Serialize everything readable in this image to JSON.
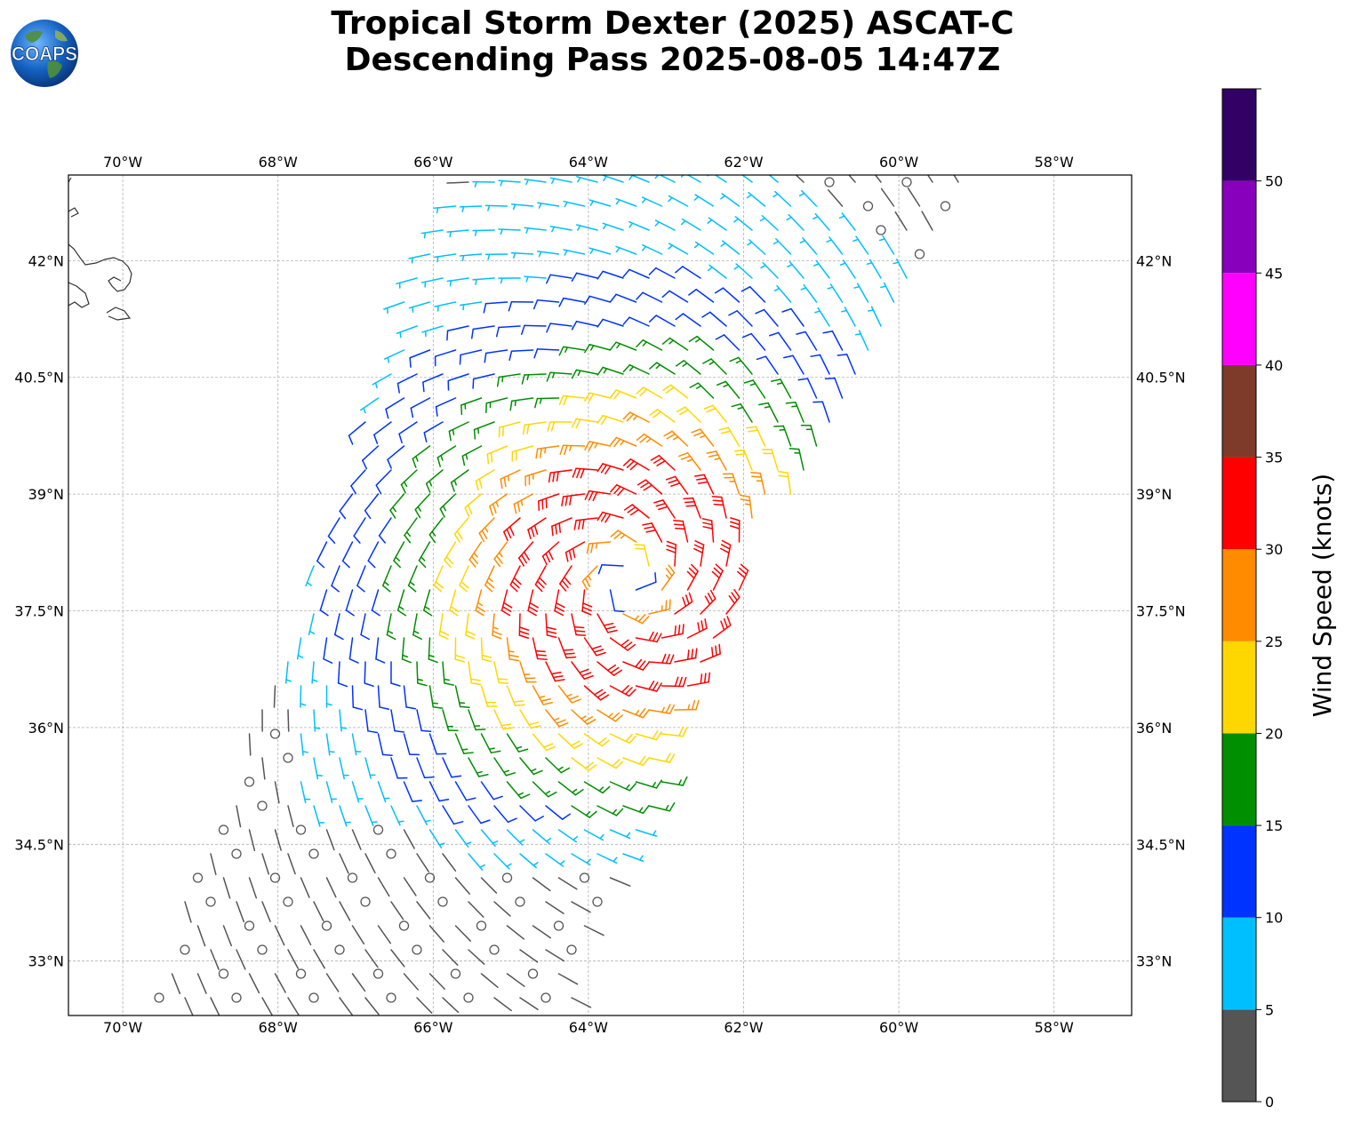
{
  "title": {
    "line1": "Tropical Storm Dexter (2025) ASCAT-C",
    "line2": "Descending Pass 2025-08-05 14:47Z"
  },
  "logo": {
    "text": "COAPS",
    "icon": "globe-icon"
  },
  "map": {
    "lon_range": [
      -70.7,
      -57.0
    ],
    "lat_range": [
      32.3,
      43.1
    ],
    "lon_ticks": [
      {
        "value": -70,
        "label": "70°W"
      },
      {
        "value": -68,
        "label": "68°W"
      },
      {
        "value": -66,
        "label": "66°W"
      },
      {
        "value": -64,
        "label": "64°W"
      },
      {
        "value": -62,
        "label": "62°W"
      },
      {
        "value": -60,
        "label": "60°W"
      },
      {
        "value": -58,
        "label": "58°W"
      }
    ],
    "lat_ticks": [
      {
        "value": 42,
        "label": "42°N"
      },
      {
        "value": 40.5,
        "label": "40.5°N"
      },
      {
        "value": 39,
        "label": "39°N"
      },
      {
        "value": 37.5,
        "label": "37.5°N"
      },
      {
        "value": 36,
        "label": "36°N"
      },
      {
        "value": 34.5,
        "label": "34.5°N"
      },
      {
        "value": 33,
        "label": "33°N"
      }
    ],
    "gridlines": true,
    "storm_center": {
      "lon": -63.5,
      "lat": 37.9
    },
    "swath": {
      "corners": [
        {
          "lon": -68.0,
          "lat": 36.9
        },
        {
          "lon": -65.8,
          "lat": 43.1
        },
        {
          "lon": -59.0,
          "lat": 43.1
        },
        {
          "lon": -61.8,
          "lat": 38.3
        },
        {
          "lon": -64.3,
          "lat": 32.3
        },
        {
          "lon": -69.8,
          "lat": 32.3
        }
      ]
    },
    "colors": {
      "calm": "#555555",
      "c5": "#00bfff",
      "c10": "#0033ff",
      "c15": "#008f00",
      "c20": "#ffd700",
      "c25": "#ff8c00",
      "c30": "#ff0000",
      "c35": "#7f3b2a",
      "c40": "#ff00ff",
      "c45": "#8800bb",
      "c50": "#330066",
      "coast": "#333333",
      "grid": "#b0b0b0"
    }
  },
  "colorbar": {
    "label": "Wind Speed (knots)",
    "bins": [
      {
        "min": 0,
        "max": 5,
        "color": "#555555"
      },
      {
        "min": 5,
        "max": 10,
        "color": "#00bfff"
      },
      {
        "min": 10,
        "max": 15,
        "color": "#0033ff"
      },
      {
        "min": 15,
        "max": 20,
        "color": "#008f00"
      },
      {
        "min": 20,
        "max": 25,
        "color": "#ffd700"
      },
      {
        "min": 25,
        "max": 30,
        "color": "#ff8c00"
      },
      {
        "min": 30,
        "max": 35,
        "color": "#ff0000"
      },
      {
        "min": 35,
        "max": 40,
        "color": "#7f3b2a"
      },
      {
        "min": 40,
        "max": 45,
        "color": "#ff00ff"
      },
      {
        "min": 45,
        "max": 50,
        "color": "#8800bb"
      },
      {
        "min": 50,
        "max": 55,
        "color": "#330066"
      }
    ],
    "tick_labels": [
      "0",
      "5",
      "10",
      "15",
      "20",
      "25",
      "30",
      "35",
      "40",
      "45",
      "50"
    ]
  }
}
